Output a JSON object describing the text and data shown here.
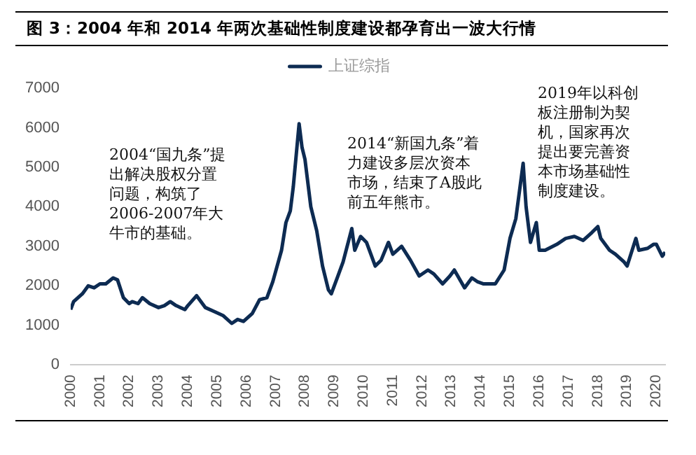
{
  "chart_data": {
    "type": "line",
    "title": "图 3：2004 年和 2014 年两次基础性制度建设都孕育出一波大行情",
    "x": [
      2000.0,
      2000.1,
      2000.4,
      2000.6,
      2000.8,
      2001.0,
      2001.2,
      2001.45,
      2001.6,
      2001.8,
      2002.0,
      2002.1,
      2002.3,
      2002.45,
      2002.7,
      2003.0,
      2003.2,
      2003.4,
      2003.6,
      2003.9,
      2004.0,
      2004.3,
      2004.6,
      2004.9,
      2005.2,
      2005.5,
      2005.7,
      2005.9,
      2006.2,
      2006.45,
      2006.7,
      2006.9,
      2007.2,
      2007.35,
      2007.5,
      2007.6,
      2007.8,
      2007.9,
      2008.0,
      2008.2,
      2008.4,
      2008.6,
      2008.8,
      2008.9,
      2009.1,
      2009.3,
      2009.6,
      2009.7,
      2009.9,
      2010.1,
      2010.4,
      2010.6,
      2010.85,
      2011.0,
      2011.3,
      2011.6,
      2011.9,
      2012.2,
      2012.4,
      2012.7,
      2012.95,
      2013.1,
      2013.45,
      2013.7,
      2013.9,
      2014.1,
      2014.5,
      2014.8,
      2015.0,
      2015.2,
      2015.45,
      2015.55,
      2015.7,
      2015.9,
      2016.0,
      2016.2,
      2016.6,
      2016.9,
      2017.2,
      2017.5,
      2017.8,
      2018.0,
      2018.1,
      2018.4,
      2018.6,
      2018.9,
      2019.0,
      2019.3,
      2019.4,
      2019.7,
      2019.9,
      2020.0,
      2020.2,
      2020.3
    ],
    "series": [
      {
        "name": "上证综指",
        "color": "#0d2b52",
        "values": [
          1400,
          1600,
          1800,
          2000,
          1950,
          2050,
          2050,
          2200,
          2150,
          1700,
          1550,
          1600,
          1550,
          1700,
          1550,
          1450,
          1500,
          1600,
          1500,
          1400,
          1500,
          1750,
          1450,
          1350,
          1250,
          1050,
          1150,
          1100,
          1300,
          1650,
          1700,
          2100,
          2900,
          3600,
          3900,
          4500,
          6100,
          5500,
          5200,
          4000,
          3400,
          2500,
          1900,
          1800,
          2200,
          2600,
          3450,
          2900,
          3250,
          3100,
          2500,
          2650,
          3100,
          2800,
          3000,
          2650,
          2250,
          2400,
          2300,
          2050,
          2250,
          2400,
          1950,
          2200,
          2100,
          2050,
          2050,
          2400,
          3200,
          3700,
          5100,
          4000,
          3100,
          3600,
          2900,
          2900,
          3050,
          3200,
          3250,
          3150,
          3350,
          3500,
          3200,
          2900,
          2800,
          2600,
          2500,
          3200,
          2900,
          2950,
          3050,
          3050,
          2750,
          2850
        ]
      }
    ],
    "xlim": [
      2000,
      2020.3
    ],
    "xticks": [
      2000,
      2001,
      2002,
      2003,
      2004,
      2005,
      2006,
      2007,
      2008,
      2009,
      2010,
      2011,
      2012,
      2013,
      2014,
      2015,
      2016,
      2017,
      2018,
      2019,
      2020
    ],
    "ylim": [
      0,
      7000
    ],
    "yticks": [
      0,
      1000,
      2000,
      3000,
      4000,
      5000,
      6000,
      7000
    ],
    "grid": false,
    "legend": "top",
    "marker": "none",
    "line_style": "solid",
    "annotations": [
      "2004“国九条”提出解决股权分置问题，构筑了2006-2007年大牛市的基础。",
      "2014“新国九条”着力建设多层次资本市场，结束了A股此前五年熊市。",
      "2019年以科创板注册制为契机，国家再次提出要完善资本市场基础性制度建设。"
    ]
  }
}
